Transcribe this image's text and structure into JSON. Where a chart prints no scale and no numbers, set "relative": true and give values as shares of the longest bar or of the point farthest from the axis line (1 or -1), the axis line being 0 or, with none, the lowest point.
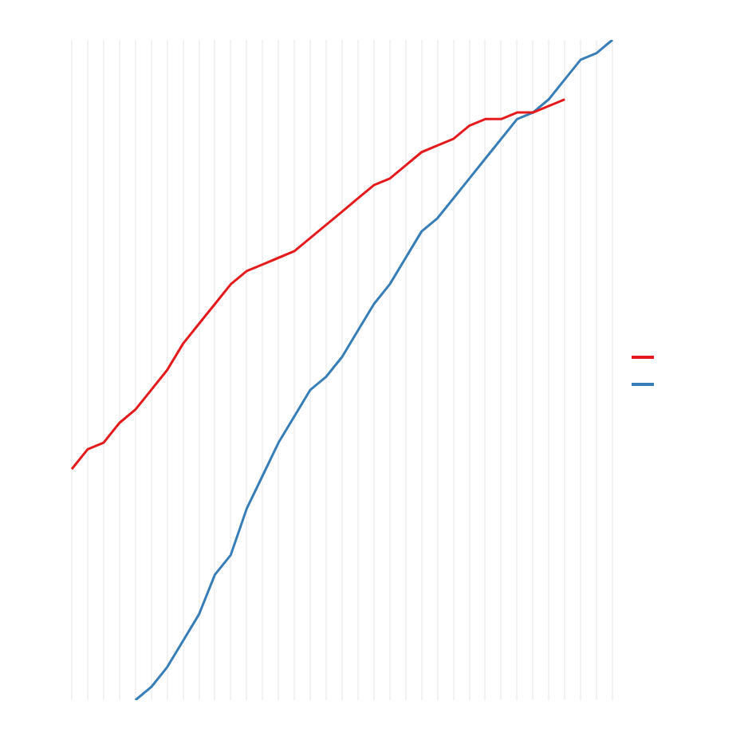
{
  "chart_data": {
    "type": "line",
    "relative": true,
    "grid": true,
    "tick_labels": false,
    "categories": [
      null,
      null,
      null,
      null,
      null,
      null,
      null,
      null,
      null,
      null,
      null,
      null,
      null,
      null,
      null,
      null,
      null,
      null,
      null,
      null,
      null,
      null,
      null,
      null,
      null,
      null,
      null,
      null,
      null,
      null,
      null,
      null,
      null,
      null,
      null
    ],
    "series": [
      {
        "color": "#e41a1c",
        "values": [
          0.35,
          0.38,
          0.39,
          0.42,
          0.44,
          0.47,
          0.5,
          0.54,
          0.57,
          0.6,
          0.63,
          0.65,
          0.66,
          0.67,
          0.68,
          0.7,
          0.72,
          0.74,
          0.76,
          0.78,
          0.79,
          0.81,
          0.83,
          0.84,
          0.85,
          0.87,
          0.88,
          0.88,
          0.89,
          0.89,
          0.9,
          0.91,
          null,
          null,
          null
        ]
      },
      {
        "color": "#377eb8",
        "values": [
          null,
          null,
          null,
          null,
          0,
          0.02,
          0.05,
          0.09,
          0.13,
          0.19,
          0.22,
          0.29,
          0.34,
          0.39,
          0.43,
          0.47,
          0.49,
          0.52,
          0.56,
          0.6,
          0.63,
          0.67,
          0.71,
          0.73,
          0.76,
          0.79,
          0.82,
          0.85,
          0.88,
          0.89,
          0.91,
          0.94,
          0.97,
          0.98,
          1
        ]
      }
    ]
  }
}
